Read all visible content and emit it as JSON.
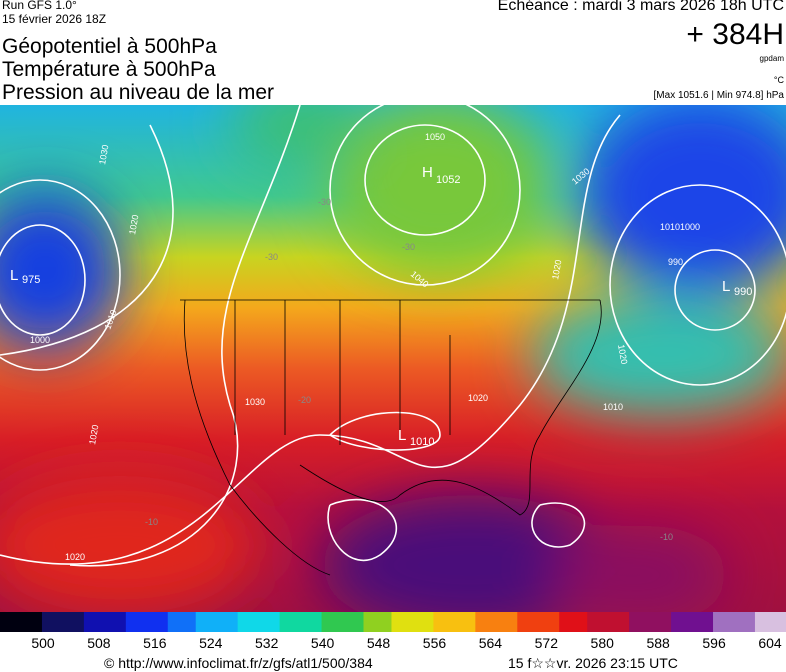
{
  "header": {
    "run": "Run GFS 1.0°",
    "run_date": "15 février 2026 18Z",
    "titles": [
      "Géopotentiel à 500hPa",
      "Température à 500hPa",
      "Pression au niveau de la mer"
    ],
    "forecast": "Echéance : mardi 3 mars 2026 18h UTC",
    "lead": "+ 384H",
    "unit_geo": "gpdam",
    "unit_temp": "°C",
    "range": "[Max 1051.6 | Min 974.8] hPa"
  },
  "map": {
    "centers": [
      {
        "symbol": "L",
        "value": "975"
      },
      {
        "symbol": "H",
        "value": "1052"
      },
      {
        "symbol": "L",
        "value": "990"
      },
      {
        "symbol": "L",
        "value": "1010"
      }
    ],
    "isobar_labels": [
      "1030",
      "1020",
      "1000",
      "1010",
      "1050",
      "1040",
      "1030",
      "1020",
      "1010",
      "1000",
      "990",
      "1020",
      "1030",
      "1020",
      "1010",
      "1020",
      "1020"
    ],
    "temp_labels": [
      "-30",
      "-30",
      "-30",
      "-10",
      "-10",
      "-20"
    ]
  },
  "colorbar": {
    "ticks": [
      500,
      508,
      516,
      524,
      532,
      540,
      548,
      556,
      564,
      572,
      580,
      588,
      596,
      604
    ]
  },
  "footer": {
    "source": "© http://www.infoclimat.fr/z/gfs/atl1/500/384",
    "generated": "15 f☆☆vr. 2026 23:15 UTC"
  }
}
